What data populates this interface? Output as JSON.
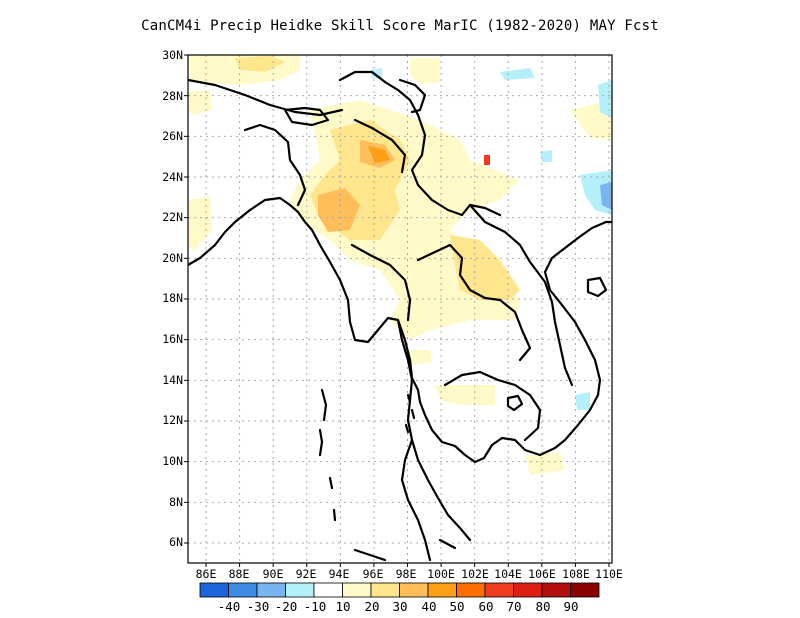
{
  "title": "CanCM4i Precip Heidke Skill Score MarIC (1982-2020) MAY Fcst",
  "longitude_labels": [
    "86E",
    "88E",
    "90E",
    "92E",
    "94E",
    "96E",
    "98E",
    "100E",
    "102E",
    "104E",
    "106E",
    "108E",
    "110E"
  ],
  "latitude_labels": [
    "30N",
    "28N",
    "26N",
    "24N",
    "22N",
    "20N",
    "18N",
    "16N",
    "14N",
    "12N",
    "10N",
    "8N",
    "6N"
  ],
  "colorbar": {
    "colors": [
      "#1e64dc",
      "#3c8ce6",
      "#78b4f0",
      "#b4f0fa",
      "#ffffff",
      "#fffac8",
      "#ffe68c",
      "#ffbe5a",
      "#ffa014",
      "#ff6e00",
      "#f03c1e",
      "#dc1e14",
      "#b40f0f",
      "#8c0000"
    ],
    "labels": [
      "-40",
      "-30",
      "-20",
      "-10",
      "10",
      "20",
      "30",
      "40",
      "50",
      "60",
      "70",
      "80",
      "90"
    ]
  },
  "map_colors": {
    "skill_10_20": "#fffac8",
    "skill_20_30": "#ffe68c",
    "skill_30_40": "#ffbe5a",
    "skill_40_50": "#ffa014",
    "skill_60_70": "#f03c1e",
    "skill_neg_10": "#b4f0fa",
    "skill_neg_20": "#78b4f0"
  },
  "axis_icons": [
    "lat-lon-grid-icon",
    "coastline-icon",
    "country-border-icon"
  ]
}
